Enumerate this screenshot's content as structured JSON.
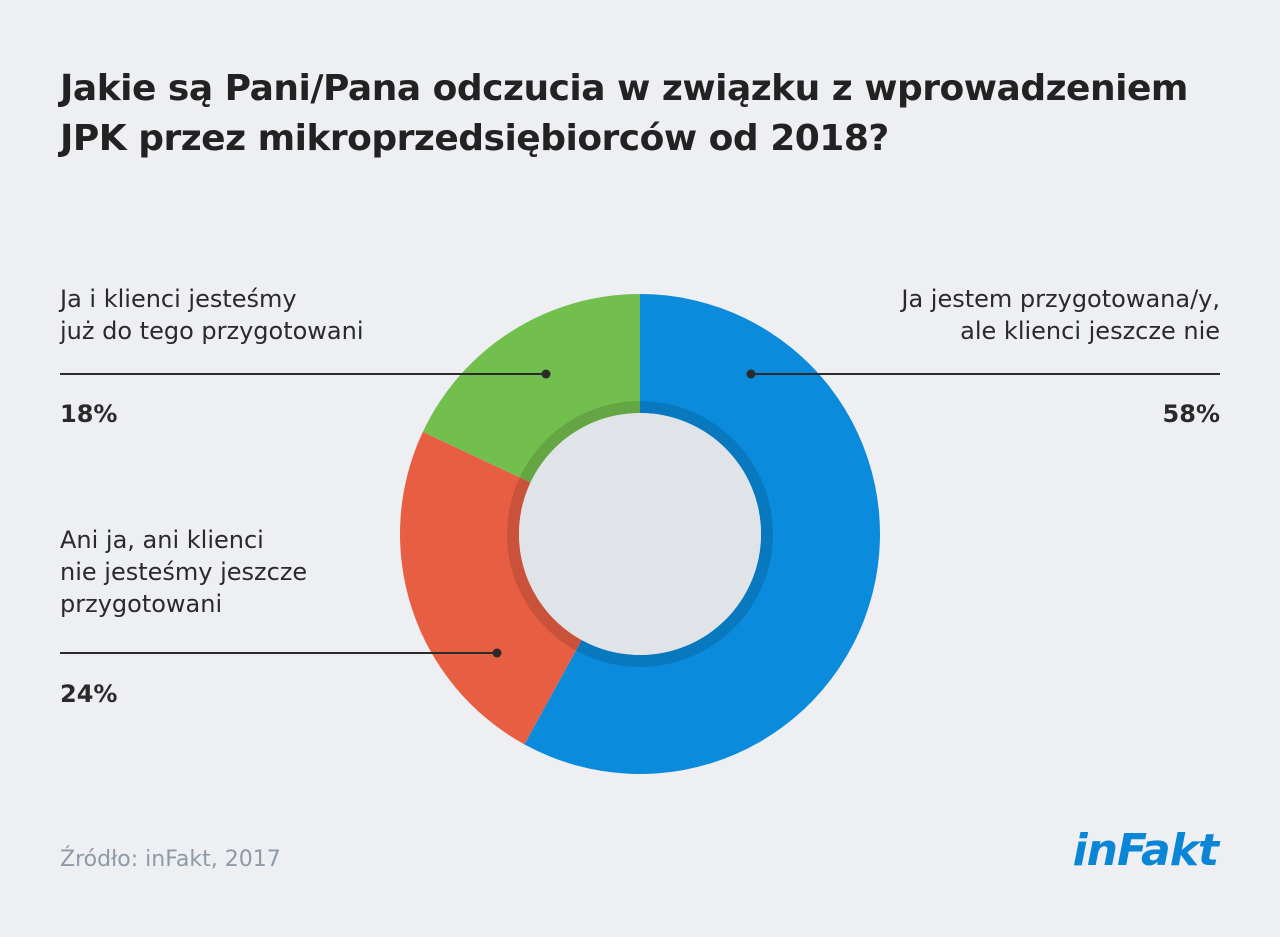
{
  "colors": {
    "blue": "#0a8bdb",
    "green": "#72bf4d",
    "red": "#e85e43",
    "center": "#e0e4e9",
    "text": "#2a2a2a",
    "source": "#8e9aa6",
    "brand": "#0b86d6"
  },
  "chart_data": {
    "type": "pie",
    "variant": "donut",
    "title": "Jakie są Pani/Pana odczucia w związku z wprowadzeniem JPK przez mikroprzedsiębiorców od 2018?",
    "title_lines": [
      "Jakie są Pani/Pana odczucia w związku z wprowadzeniem",
      "JPK przez mikroprzedsiębiorców od 2018?"
    ],
    "unit": "%",
    "slices": [
      {
        "key": "prepared_clients_not",
        "label": "Ja jestem przygotowana/y, ale klienci jeszcze nie",
        "label_lines": [
          "Ja jestem przygotowana/y,",
          "ale klienci jeszcze nie"
        ],
        "value": 58,
        "value_text": "58%",
        "color": "#0a8bdb"
      },
      {
        "key": "nobody_prepared",
        "label": "Ani ja, ani klienci nie jesteśmy jeszcze przygotowani",
        "label_lines": [
          "Ani ja, ani klienci",
          "nie jesteśmy jeszcze",
          "przygotowani"
        ],
        "value": 24,
        "value_text": "24%",
        "color": "#e85e43"
      },
      {
        "key": "all_prepared",
        "label": "Ja i klienci jesteśmy już do tego przygotowani",
        "label_lines": [
          "Ja i klienci jesteśmy",
          "już do tego przygotowani"
        ],
        "value": 18,
        "value_text": "18%",
        "color": "#72bf4d"
      }
    ],
    "start_angle_deg": 0,
    "direction": "clockwise"
  },
  "footer": {
    "source": "Źródło: inFakt, 2017",
    "logo_text": "inFakt"
  }
}
